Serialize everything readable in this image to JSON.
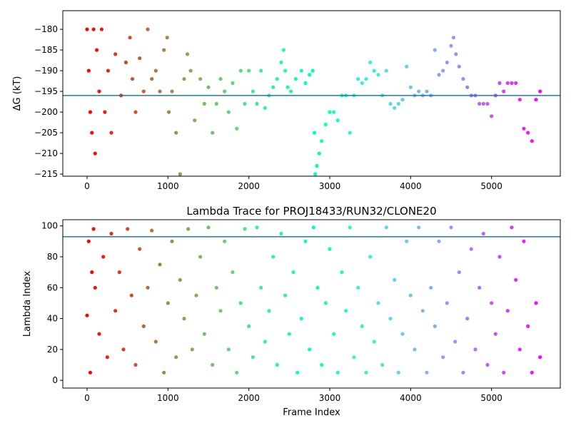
{
  "chart_data": [
    {
      "type": "scatter",
      "title": "",
      "xlabel": "",
      "ylabel": "ΔG (kT)",
      "xlim": [
        -300,
        5850
      ],
      "ylim": [
        -215.5,
        -175.5
      ],
      "xticks": [
        0,
        1000,
        2000,
        3000,
        4000,
        5000
      ],
      "yticks": [
        -215,
        -210,
        -205,
        -200,
        -195,
        -190,
        -185,
        -180
      ],
      "hline": -196,
      "hline_color": "#1f77b4",
      "colormap": "rainbow (frame index: red at start, violet at end)",
      "points_x": [
        0,
        20,
        40,
        60,
        80,
        100,
        120,
        150,
        180,
        220,
        260,
        300,
        350,
        420,
        480,
        530,
        560,
        600,
        650,
        700,
        750,
        800,
        850,
        900,
        950,
        990,
        1010,
        1050,
        1100,
        1150,
        1200,
        1240,
        1280,
        1330,
        1400,
        1450,
        1500,
        1550,
        1600,
        1650,
        1700,
        1750,
        1800,
        1850,
        1900,
        1950,
        2000,
        2050,
        2100,
        2150,
        2200,
        2250,
        2300,
        2350,
        2400,
        2430,
        2450,
        2480,
        2520,
        2580,
        2650,
        2700,
        2750,
        2790,
        2810,
        2820,
        2840,
        2870,
        2900,
        2950,
        3000,
        3050,
        3100,
        3150,
        3200,
        3250,
        3300,
        3350,
        3400,
        3450,
        3500,
        3550,
        3600,
        3650,
        3700,
        3750,
        3800,
        3850,
        3900,
        3950,
        4000,
        4050,
        4100,
        4150,
        4200,
        4250,
        4300,
        4350,
        4400,
        4450,
        4500,
        4530,
        4560,
        4600,
        4650,
        4700,
        4750,
        4800,
        4850,
        4900,
        4950,
        5000,
        5050,
        5100,
        5150,
        5200,
        5250,
        5300,
        5350,
        5400,
        5450,
        5500,
        5550,
        5600
      ],
      "points_y": [
        -180,
        -190,
        -200,
        -205,
        -180,
        -210,
        -185,
        -195,
        -180,
        -200,
        -190,
        -205,
        -186,
        -196,
        -188,
        -182,
        -192,
        -200,
        -187,
        -195,
        -180,
        -192,
        -190,
        -195,
        -185,
        -182,
        -200,
        -195,
        -205,
        -215,
        -192,
        -186,
        -190,
        -202,
        -192,
        -198,
        -194,
        -205,
        -198,
        -192,
        -195,
        -200,
        -193,
        -204,
        -190,
        -198,
        -190,
        -195,
        -198,
        -190,
        -199,
        -196,
        -194,
        -192,
        -188,
        -185,
        -190,
        -194,
        -195,
        -192,
        -190,
        -193,
        -191,
        -190,
        -205,
        -215,
        -213,
        -210,
        -207,
        -203,
        -200,
        -200,
        -202,
        -196,
        -196,
        -205,
        -196,
        -192,
        -193,
        -192,
        -188,
        -190,
        -191,
        -196,
        -190,
        -198,
        -199,
        -198,
        -197,
        -189,
        -194,
        -196,
        -195,
        -196,
        -195,
        -196,
        -185,
        -191,
        -190,
        -188,
        -184,
        -182,
        -186,
        -189,
        -192,
        -194,
        -196,
        -196,
        -198,
        -198,
        -198,
        -201,
        -196,
        -193,
        -195,
        -193,
        -193,
        -193,
        -197,
        -204,
        -205,
        -207,
        -197,
        -195
      ]
    },
    {
      "type": "scatter",
      "title": "Lambda Trace for PROJ18433/RUN32/CLONE20",
      "xlabel": "Frame Index",
      "ylabel": "Lambda Index",
      "xlim": [
        -300,
        5850
      ],
      "ylim": [
        -5,
        104
      ],
      "xticks": [
        0,
        1000,
        2000,
        3000,
        4000,
        5000
      ],
      "yticks": [
        0,
        20,
        40,
        60,
        80,
        100
      ],
      "hline": 93,
      "hline_color": "#1f77b4",
      "colormap": "rainbow (frame index: red at start, violet at end)",
      "points_x": [
        0,
        20,
        40,
        60,
        80,
        100,
        150,
        200,
        250,
        300,
        350,
        400,
        450,
        500,
        550,
        600,
        650,
        700,
        750,
        800,
        850,
        900,
        950,
        1000,
        1050,
        1100,
        1150,
        1200,
        1250,
        1300,
        1350,
        1400,
        1450,
        1500,
        1550,
        1600,
        1650,
        1700,
        1750,
        1800,
        1850,
        1900,
        1950,
        2000,
        2050,
        2100,
        2150,
        2200,
        2250,
        2300,
        2350,
        2400,
        2450,
        2500,
        2550,
        2600,
        2650,
        2700,
        2750,
        2800,
        2850,
        2900,
        2950,
        3000,
        3050,
        3100,
        3150,
        3200,
        3250,
        3300,
        3350,
        3400,
        3450,
        3500,
        3550,
        3600,
        3650,
        3700,
        3750,
        3800,
        3850,
        3900,
        3950,
        4000,
        4050,
        4100,
        4150,
        4200,
        4250,
        4300,
        4350,
        4400,
        4450,
        4500,
        4550,
        4600,
        4650,
        4700,
        4750,
        4800,
        4850,
        4900,
        4950,
        5000,
        5050,
        5100,
        5150,
        5200,
        5250,
        5300,
        5350,
        5400,
        5450,
        5500,
        5550,
        5600
      ],
      "points_y": [
        42,
        90,
        5,
        70,
        98,
        60,
        30,
        80,
        15,
        95,
        45,
        70,
        20,
        98,
        55,
        10,
        85,
        35,
        60,
        97,
        25,
        75,
        5,
        50,
        90,
        15,
        65,
        40,
        98,
        20,
        55,
        80,
        30,
        99,
        10,
        60,
        45,
        90,
        20,
        70,
        5,
        50,
        98,
        35,
        15,
        99,
        60,
        25,
        45,
        80,
        10,
        95,
        55,
        30,
        70,
        5,
        40,
        90,
        20,
        99,
        60,
        10,
        50,
        85,
        30,
        5,
        70,
        45,
        99,
        15,
        60,
        35,
        5,
        80,
        25,
        50,
        10,
        99,
        40,
        65,
        5,
        30,
        90,
        55,
        20,
        99,
        45,
        5,
        60,
        35,
        90,
        15,
        50,
        99,
        25,
        70,
        5,
        40,
        85,
        20,
        60,
        95,
        10,
        50,
        30,
        80,
        5,
        45,
        99,
        65,
        20,
        90,
        35,
        5,
        50,
        15
      ]
    }
  ]
}
